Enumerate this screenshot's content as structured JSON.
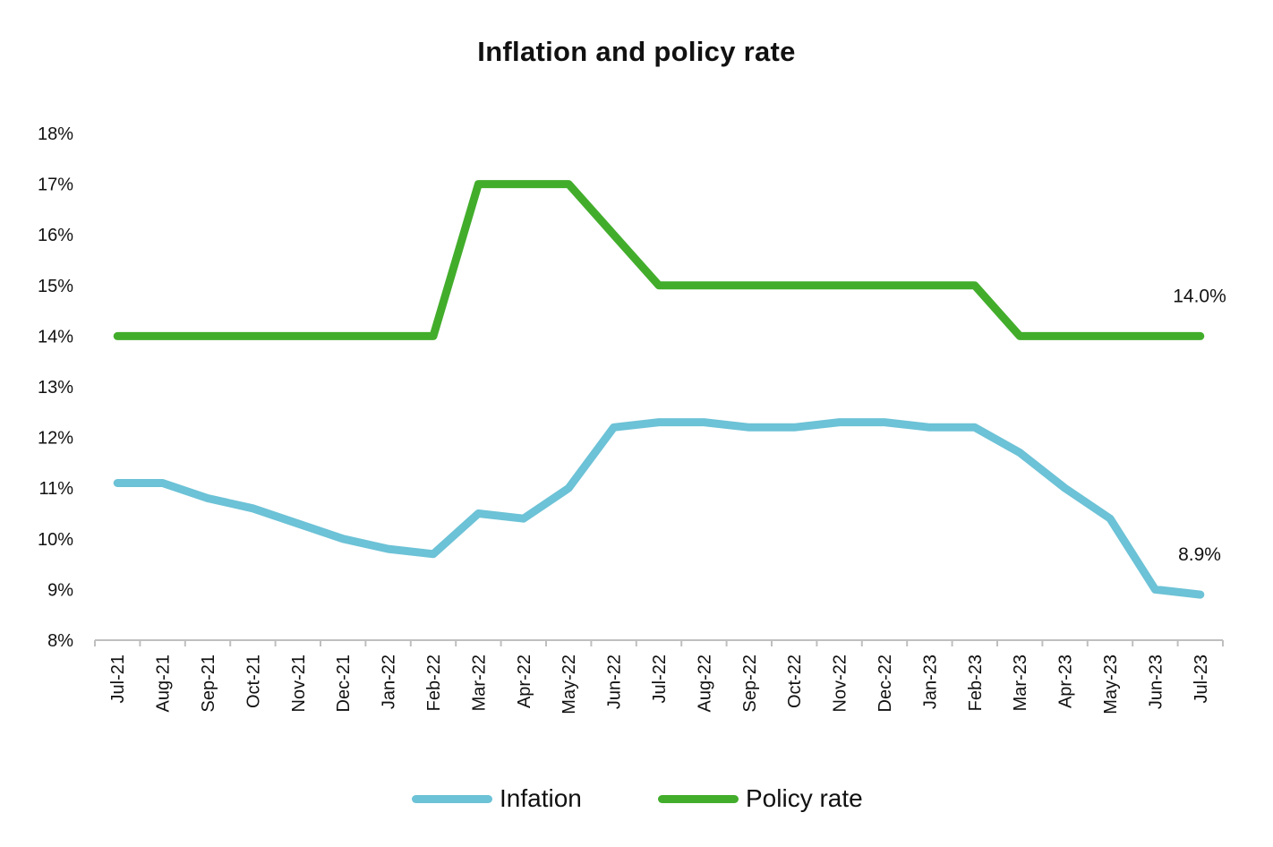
{
  "chart_data": {
    "type": "line",
    "title": "Inflation and policy rate",
    "categories": [
      "Jul-21",
      "Aug-21",
      "Sep-21",
      "Oct-21",
      "Nov-21",
      "Dec-21",
      "Jan-22",
      "Feb-22",
      "Mar-22",
      "Apr-22",
      "May-22",
      "Jun-22",
      "Jul-22",
      "Aug-22",
      "Sep-22",
      "Oct-22",
      "Nov-22",
      "Dec-22",
      "Jan-23",
      "Feb-23",
      "Mar-23",
      "Apr-23",
      "May-23",
      "Jun-23",
      "Jul-23"
    ],
    "ylim": [
      8,
      18
    ],
    "yticks": [
      "8%",
      "9%",
      "10%",
      "11%",
      "12%",
      "13%",
      "14%",
      "15%",
      "16%",
      "17%",
      "18%"
    ],
    "grid": false,
    "legend_position": "bottom",
    "series": [
      {
        "name": "Infation",
        "color": "#6CC2D6",
        "values": [
          11.1,
          11.1,
          10.8,
          10.6,
          10.3,
          10.0,
          9.8,
          9.7,
          10.5,
          10.4,
          11.0,
          12.2,
          12.3,
          12.3,
          12.2,
          12.2,
          12.3,
          12.3,
          12.2,
          12.2,
          11.7,
          11.0,
          10.4,
          9.0,
          8.9
        ],
        "end_label": "8.9%"
      },
      {
        "name": "Policy rate",
        "color": "#42AD2B",
        "values": [
          14,
          14,
          14,
          14,
          14,
          14,
          14,
          14,
          17,
          17,
          17,
          16,
          15,
          15,
          15,
          15,
          15,
          15,
          15,
          15,
          14,
          14,
          14,
          14,
          14
        ],
        "end_label": "14.0%"
      }
    ]
  }
}
